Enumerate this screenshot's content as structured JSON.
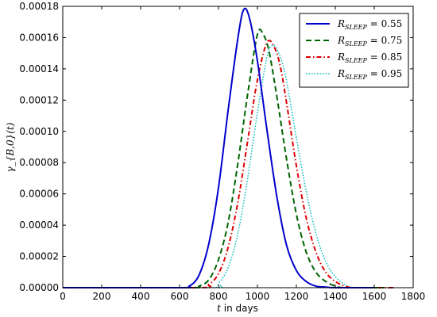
{
  "chart_data": {
    "type": "line",
    "title": "",
    "xlabel_prefix": "t",
    "xlabel_suffix": " in days",
    "ylabel": "γ_{B,0}(t)",
    "xlim": [
      0,
      1800
    ],
    "ylim": [
      0,
      0.00018
    ],
    "xticks": [
      "0",
      "200",
      "400",
      "600",
      "800",
      "1000",
      "1200",
      "1400",
      "1600",
      "1800"
    ],
    "yticks": [
      "0.00000",
      "0.00002",
      "0.00004",
      "0.00006",
      "0.00008",
      "0.00010",
      "0.00012",
      "0.00014",
      "0.00016",
      "0.00018"
    ],
    "grid": false,
    "legend_position": "top-right",
    "series": [
      {
        "name": "R_{SLEEP} = 0.55",
        "label_base": "R",
        "label_sub": "SLEEP",
        "label_value": " = 0.55",
        "color": "#0000cc",
        "style": "solid",
        "x": [
          0,
          600,
          650,
          700,
          750,
          800,
          850,
          900,
          930,
          960,
          1000,
          1050,
          1100,
          1150,
          1200,
          1250,
          1300,
          1350,
          1400,
          1600
        ],
        "y": [
          0,
          0,
          1e-06,
          8e-06,
          2.8e-05,
          6.4e-05,
          0.000114,
          0.00016,
          0.000178,
          0.000172,
          0.000145,
          0.0001,
          5.8e-05,
          2.7e-05,
          1.1e-05,
          4e-06,
          1e-06,
          4e-07,
          0,
          0
        ]
      },
      {
        "name": "R_{SLEEP} = 0.75",
        "label_base": "R",
        "label_sub": "SLEEP",
        "label_value": " = 0.75",
        "color": "#006400",
        "style": "dashed",
        "x": [
          0,
          650,
          700,
          750,
          800,
          850,
          900,
          950,
          1000,
          1030,
          1060,
          1100,
          1150,
          1200,
          1250,
          1300,
          1350,
          1400,
          1450,
          1650
        ],
        "y": [
          0,
          0,
          1e-06,
          5e-06,
          1.8e-05,
          4.2e-05,
          8e-05,
          0.000124,
          0.000162,
          0.000162,
          0.000151,
          0.000122,
          8.2e-05,
          4.7e-05,
          2.3e-05,
          1e-05,
          4e-06,
          1e-06,
          0,
          0
        ]
      },
      {
        "name": "R_{SLEEP} = 0.85",
        "label_base": "R",
        "label_sub": "SLEEP",
        "label_value": " = 0.85",
        "color": "#dd0000",
        "style": "dashdot",
        "x": [
          0,
          700,
          750,
          800,
          850,
          900,
          950,
          1000,
          1050,
          1090,
          1120,
          1150,
          1200,
          1250,
          1300,
          1350,
          1400,
          1450,
          1500,
          1700
        ],
        "y": [
          0,
          0,
          2e-06,
          9e-06,
          2.6e-05,
          5.5e-05,
          9.4e-05,
          0.000133,
          0.000157,
          0.000153,
          0.00014,
          0.000118,
          7.8e-05,
          4.5e-05,
          2.3e-05,
          1e-05,
          4e-06,
          1e-06,
          0,
          0
        ]
      },
      {
        "name": "R_{SLEEP} = 0.95",
        "label_base": "R",
        "label_sub": "SLEEP",
        "label_value": " = 0.95",
        "color": "#00bbbb",
        "style": "dotted",
        "x": [
          0,
          750,
          800,
          850,
          900,
          950,
          1000,
          1050,
          1080,
          1110,
          1140,
          1170,
          1200,
          1250,
          1300,
          1350,
          1400,
          1450,
          1500,
          1700
        ],
        "y": [
          0,
          0,
          3e-06,
          1.3e-05,
          3.5e-05,
          7e-05,
          0.000112,
          0.000148,
          0.000155,
          0.00015,
          0.000138,
          0.000118,
          9.6e-05,
          6.2e-05,
          3.5e-05,
          1.7e-05,
          7e-06,
          2e-06,
          0,
          0
        ]
      }
    ]
  }
}
